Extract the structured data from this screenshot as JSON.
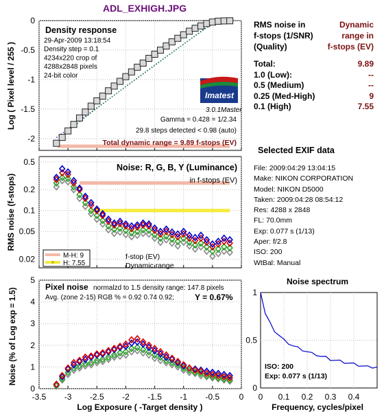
{
  "title": "ADL_EXHIGH.JPG",
  "density": {
    "title": "Density response",
    "info_lines": [
      "29-Apr-2009 13:18:54",
      "Density step = 0.1",
      "4234x220 crop of",
      "4288x2848 pixels",
      "24-bit color"
    ],
    "gamma_line": "Gamma = 0.428 = 1/2.34",
    "steps_line": "29.8 steps detected < 0.98 (auto)",
    "total_dr_line": "Total dynamic range = 9.89 f-stops (EV)",
    "logo_text": "Imatest",
    "version": "3.0.1",
    "version_label": "Master",
    "ylabel": "Log ( Pixel level / 255 )",
    "yticks": [
      "0",
      "-0.5",
      "-1",
      "-1.5",
      "-2"
    ]
  },
  "noise": {
    "title": "Noise: R, G, B, Y (Luminance)",
    "subtitle": "in f-stops (EV)",
    "ylabel": "RMS noise (f-stops)",
    "yticks": [
      "0.5",
      "0.2",
      "0.1",
      "0.05",
      "0.02"
    ],
    "legend": {
      "mh": "M-H: 9",
      "h": "H:  7.55",
      "fstop": "f-stop (EV)",
      "dr": "Dynamic range"
    }
  },
  "pixel": {
    "title": "Pixel noise",
    "normalized": "normalzd to 1.5 density range: 147.8 pixels",
    "avg": "Avg. (zone 2-15) RGB % = 0.92  0.74  0.92;",
    "y": "Y = 0.67%",
    "ylabel": "Noise (% of Log exp = 1.5)",
    "yticks": [
      "5",
      "4",
      "3",
      "2",
      "1",
      "0"
    ],
    "xticks": [
      "-3.5",
      "-3",
      "-2.5",
      "-2",
      "-1.5",
      "-1",
      "-0.5",
      "0"
    ],
    "xlabel": "Log Exposure ( -Target density )"
  },
  "rms": {
    "header_left": [
      "RMS noise in",
      "f-stops (1/SNR)",
      "(Quality)"
    ],
    "header_right": [
      "Dynamic",
      "range in",
      "f-stops (EV)"
    ],
    "rows": [
      {
        "label": "Total:",
        "value": "9.89"
      },
      {
        "label": "1.0   (Low):",
        "value": "--"
      },
      {
        "label": "0.5   (Medium)",
        "value": "--"
      },
      {
        "label": "0.25 (Med-High)",
        "value": "9"
      },
      {
        "label": "0.1   (High)",
        "value": "7.55"
      }
    ]
  },
  "exif": {
    "title": "Selected EXIF data",
    "lines": [
      "File:  2009:04:29 13:04:15",
      "Make:  NIKON CORPORATION",
      "Model: NIKON D5000",
      "Taken: 2009:04:28 08:54:12",
      "Res:    4288 x 2848",
      "FL:  70.0mm",
      "Exp:   0.077 s  (1/13)",
      "Aper:  f/2.8",
      "ISO:   200",
      "WtBal:  Manual"
    ]
  },
  "spectrum": {
    "title": "Noise spectrum",
    "iso": "ISO:  200",
    "exp": "Exp:  0.077 s  (1/13)",
    "xlabel": "Frequency, cycles/pixel",
    "yticks": [
      "1",
      "0.5",
      "0"
    ],
    "xticks": [
      "0",
      "0.1",
      "0.2",
      "0.3",
      "0.4"
    ]
  },
  "colors": {
    "red": "#dd0000",
    "green": "#22aa22",
    "blue": "#0000cc",
    "gray": "#888888",
    "pink": "#f4b8a8",
    "yellow": "#f4ec40",
    "dark": "#7b1010"
  },
  "chart_data": [
    {
      "type": "scatter",
      "name": "Density response",
      "xlim": [
        -3.5,
        0
      ],
      "ylim": [
        -2.2,
        0
      ],
      "x": [
        -3.2,
        -3.1,
        -3.0,
        -2.9,
        -2.8,
        -2.7,
        -2.6,
        -2.5,
        -2.4,
        -2.3,
        -2.2,
        -2.1,
        -2.0,
        -1.9,
        -1.8,
        -1.7,
        -1.6,
        -1.5,
        -1.4,
        -1.3,
        -1.2,
        -1.1,
        -1.0,
        -0.9,
        -0.8,
        -0.7,
        -0.6,
        -0.5,
        -0.4,
        -0.3,
        -0.2
      ],
      "y": [
        -2.08,
        -1.98,
        -1.87,
        -1.76,
        -1.65,
        -1.55,
        -1.45,
        -1.36,
        -1.28,
        -1.19,
        -1.11,
        -1.03,
        -0.95,
        -0.87,
        -0.79,
        -0.72,
        -0.64,
        -0.57,
        -0.5,
        -0.43,
        -0.36,
        -0.3,
        -0.24,
        -0.18,
        -0.13,
        -0.09,
        -0.05,
        -0.025,
        -0.01,
        -0.005,
        -0.003
      ]
    },
    {
      "type": "scatter",
      "name": "Noise: R, G, B, Y (Luminance)",
      "ylog": true,
      "xlim": [
        -3.5,
        0
      ],
      "ylim": [
        0.015,
        0.6
      ],
      "x": [
        -3.2,
        -3.1,
        -3.0,
        -2.9,
        -2.8,
        -2.7,
        -2.6,
        -2.5,
        -2.4,
        -2.3,
        -2.2,
        -2.1,
        -2.0,
        -1.9,
        -1.8,
        -1.7,
        -1.6,
        -1.5,
        -1.4,
        -1.3,
        -1.2,
        -1.1,
        -1.0,
        -0.9,
        -0.8,
        -0.7,
        -0.6,
        -0.5,
        -0.4,
        -0.3,
        -0.2
      ],
      "series": [
        {
          "name": "R",
          "values": [
            0.28,
            0.35,
            0.33,
            0.25,
            0.2,
            0.15,
            0.12,
            0.1,
            0.085,
            0.07,
            0.062,
            0.065,
            0.06,
            0.055,
            0.058,
            0.062,
            0.06,
            0.052,
            0.046,
            0.05,
            0.045,
            0.042,
            0.046,
            0.04,
            0.037,
            0.04,
            0.035,
            0.03,
            0.033,
            0.036,
            0.034
          ]
        },
        {
          "name": "G",
          "values": [
            0.25,
            0.3,
            0.29,
            0.22,
            0.17,
            0.13,
            0.1,
            0.085,
            0.072,
            0.06,
            0.054,
            0.056,
            0.052,
            0.048,
            0.05,
            0.053,
            0.052,
            0.045,
            0.04,
            0.043,
            0.039,
            0.036,
            0.04,
            0.035,
            0.032,
            0.034,
            0.03,
            0.026,
            0.028,
            0.03,
            0.029
          ]
        },
        {
          "name": "B",
          "values": [
            0.3,
            0.4,
            0.36,
            0.27,
            0.21,
            0.16,
            0.13,
            0.105,
            0.09,
            0.075,
            0.066,
            0.07,
            0.064,
            0.06,
            0.062,
            0.066,
            0.064,
            0.056,
            0.05,
            0.054,
            0.049,
            0.046,
            0.05,
            0.044,
            0.041,
            0.044,
            0.038,
            0.033,
            0.036,
            0.04,
            0.038
          ]
        },
        {
          "name": "Y",
          "values": [
            0.22,
            0.27,
            0.26,
            0.2,
            0.15,
            0.115,
            0.09,
            0.075,
            0.064,
            0.053,
            0.047,
            0.049,
            0.045,
            0.042,
            0.044,
            0.047,
            0.046,
            0.04,
            0.035,
            0.038,
            0.034,
            0.031,
            0.035,
            0.031,
            0.028,
            0.03,
            0.026,
            0.022,
            0.024,
            0.026,
            0.025
          ]
        }
      ],
      "hlines": [
        {
          "label": "M-H: 9",
          "y": 0.25,
          "x": [
            -2.8,
            -0.2
          ]
        },
        {
          "label": "H:  7.55",
          "y": 0.1,
          "x": [
            -2.6,
            -0.2
          ]
        }
      ]
    },
    {
      "type": "scatter",
      "name": "Pixel noise",
      "xlim": [
        -3.5,
        0
      ],
      "ylim": [
        0,
        5
      ],
      "x": [
        -3.2,
        -3.1,
        -3.0,
        -2.9,
        -2.8,
        -2.7,
        -2.6,
        -2.5,
        -2.4,
        -2.3,
        -2.2,
        -2.1,
        -2.0,
        -1.9,
        -1.8,
        -1.7,
        -1.6,
        -1.5,
        -1.4,
        -1.3,
        -1.2,
        -1.1,
        -1.0,
        -0.9,
        -0.8,
        -0.7,
        -0.6,
        -0.5,
        -0.4,
        -0.3,
        -0.2
      ],
      "series": [
        {
          "name": "R",
          "values": [
            0.2,
            0.6,
            0.95,
            1.2,
            1.3,
            1.45,
            1.5,
            1.6,
            1.65,
            1.75,
            1.85,
            1.95,
            2.05,
            2.25,
            2.3,
            2.15,
            2.0,
            1.85,
            1.7,
            1.55,
            1.4,
            1.25,
            1.1,
            0.95,
            0.85,
            0.8,
            0.7,
            0.65,
            0.6,
            0.55,
            0.5
          ]
        },
        {
          "name": "G",
          "values": [
            0.15,
            0.45,
            0.75,
            0.95,
            1.05,
            1.15,
            1.2,
            1.3,
            1.35,
            1.45,
            1.55,
            1.65,
            1.7,
            1.85,
            1.9,
            1.8,
            1.7,
            1.55,
            1.45,
            1.3,
            1.2,
            1.1,
            0.95,
            0.85,
            0.75,
            0.7,
            0.6,
            0.55,
            0.5,
            0.45,
            0.4
          ]
        },
        {
          "name": "B",
          "values": [
            0.2,
            0.55,
            0.9,
            1.1,
            1.25,
            1.35,
            1.45,
            1.55,
            1.6,
            1.7,
            1.8,
            1.9,
            1.95,
            2.1,
            2.15,
            2.05,
            1.9,
            1.75,
            1.6,
            1.45,
            1.35,
            1.2,
            1.05,
            0.95,
            0.9,
            0.85,
            0.8,
            0.75,
            0.7,
            0.65,
            0.6
          ]
        },
        {
          "name": "Y",
          "values": [
            0.12,
            0.4,
            0.65,
            0.85,
            0.95,
            1.05,
            1.1,
            1.2,
            1.25,
            1.35,
            1.45,
            1.5,
            1.55,
            1.7,
            1.75,
            1.65,
            1.55,
            1.4,
            1.3,
            1.2,
            1.1,
            1.0,
            0.85,
            0.75,
            0.7,
            0.6,
            0.55,
            0.5,
            0.45,
            0.4,
            0.35
          ]
        }
      ]
    },
    {
      "type": "line",
      "name": "Noise spectrum",
      "xlim": [
        0,
        0.5
      ],
      "ylim": [
        0,
        1
      ],
      "x": [
        0,
        0.02,
        0.04,
        0.06,
        0.08,
        0.1,
        0.12,
        0.14,
        0.16,
        0.18,
        0.2,
        0.22,
        0.24,
        0.26,
        0.28,
        0.3,
        0.32,
        0.34,
        0.36,
        0.38,
        0.4,
        0.42,
        0.44,
        0.46,
        0.48,
        0.5
      ],
      "y": [
        1.0,
        0.78,
        0.68,
        0.6,
        0.55,
        0.5,
        0.47,
        0.44,
        0.42,
        0.4,
        0.38,
        0.36,
        0.35,
        0.33,
        0.32,
        0.3,
        0.29,
        0.28,
        0.27,
        0.26,
        0.25,
        0.24,
        0.23,
        0.22,
        0.22,
        0.22
      ]
    }
  ]
}
